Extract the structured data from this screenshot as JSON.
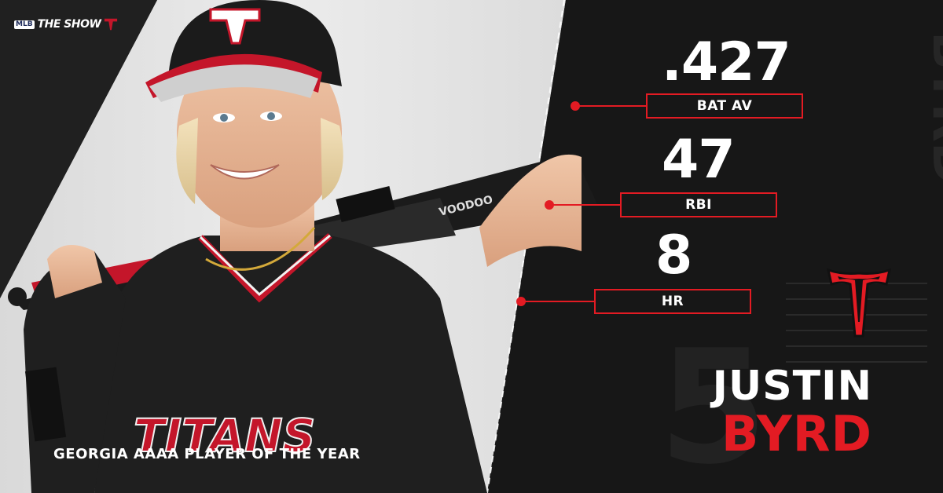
{
  "brand": {
    "mlb_badge": "MLB",
    "show_label": "THE SHOW"
  },
  "stats": [
    {
      "value": ".427",
      "label": "BAT AV"
    },
    {
      "value": "47",
      "label": "RBI"
    },
    {
      "value": "8",
      "label": "HR"
    }
  ],
  "player": {
    "first_name": "JUSTIN",
    "last_name": "BYRD",
    "jersey_text": "TITANS",
    "jersey_number": "5"
  },
  "caption": "GEORGIA AAAA PLAYER OF THE YEAR",
  "colors": {
    "accent_red": "#e31b23",
    "background_dark": "#161616",
    "text_white": "#ffffff"
  },
  "icons": {
    "team_logo": "titans-t-logo-icon",
    "show_logo": "mlb-the-show-logo"
  }
}
